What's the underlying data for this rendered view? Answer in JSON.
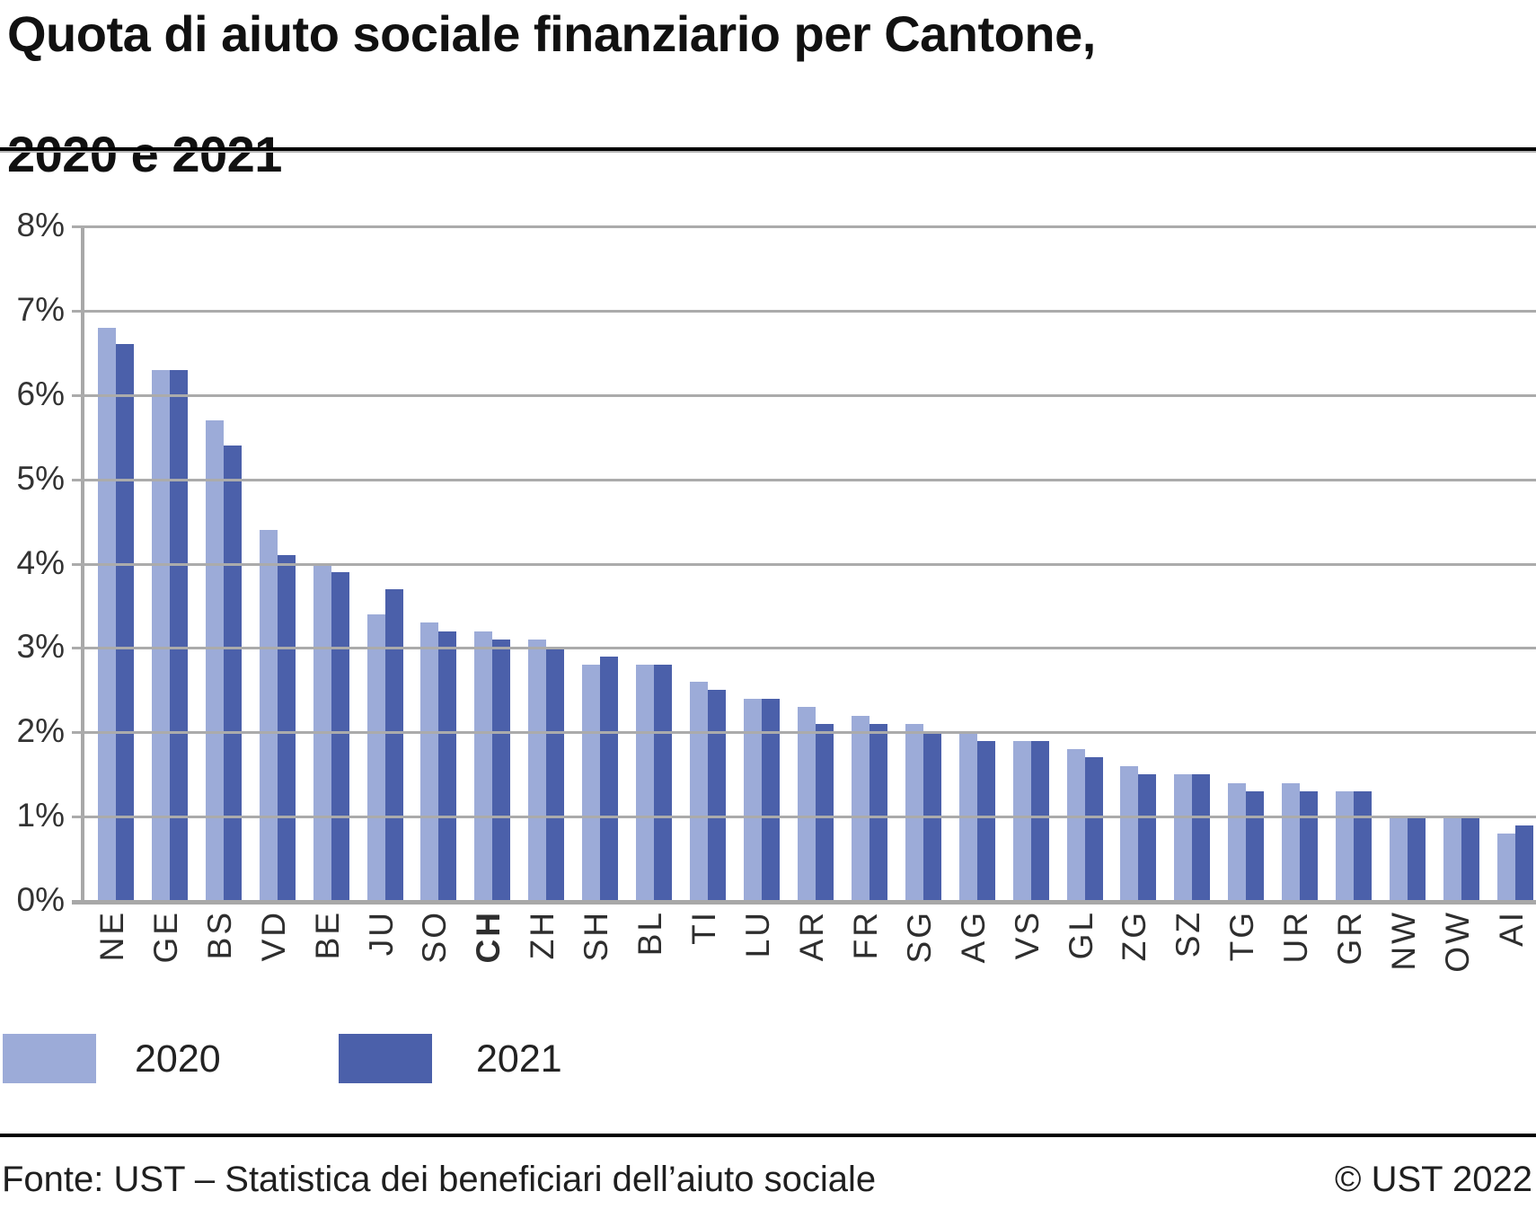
{
  "title": {
    "line1": "Quota di aiuto sociale finanziario per Cantone,",
    "line2": "2020 e 2021"
  },
  "chart_data": {
    "type": "bar",
    "categories": [
      "NE",
      "GE",
      "BS",
      "VD",
      "BE",
      "JU",
      "SO",
      "CH",
      "ZH",
      "SH",
      "BL",
      "TI",
      "LU",
      "AR",
      "FR",
      "SG",
      "AG",
      "VS",
      "GL",
      "ZG",
      "SZ",
      "TG",
      "UR",
      "GR",
      "NW",
      "OW",
      "AI"
    ],
    "bold_category": "CH",
    "series": [
      {
        "name": "2020",
        "color": "#9CABD8",
        "values": [
          6.8,
          6.3,
          5.7,
          4.4,
          4.0,
          3.4,
          3.3,
          3.2,
          3.1,
          2.8,
          2.8,
          2.6,
          2.4,
          2.3,
          2.2,
          2.1,
          2.0,
          1.9,
          1.8,
          1.6,
          1.5,
          1.4,
          1.4,
          1.3,
          1.0,
          1.0,
          0.8
        ]
      },
      {
        "name": "2021",
        "color": "#4B60AA",
        "values": [
          6.6,
          6.3,
          5.4,
          4.1,
          3.9,
          3.7,
          3.2,
          3.1,
          3.0,
          2.9,
          2.8,
          2.5,
          2.4,
          2.1,
          2.1,
          2.0,
          1.9,
          1.9,
          1.7,
          1.5,
          1.5,
          1.3,
          1.3,
          1.3,
          1.0,
          1.0,
          0.9
        ]
      }
    ],
    "ylim": [
      0,
      8
    ],
    "ytick_step": 1,
    "yticks": [
      "0%",
      "1%",
      "2%",
      "3%",
      "4%",
      "5%",
      "6%",
      "7%",
      "8%"
    ],
    "grid": true,
    "legend_position": "bottom-left"
  },
  "footer": {
    "source": "Fonte: UST – Statistica dei beneficiari dell’aiuto sociale",
    "copyright": "© UST 2022"
  }
}
